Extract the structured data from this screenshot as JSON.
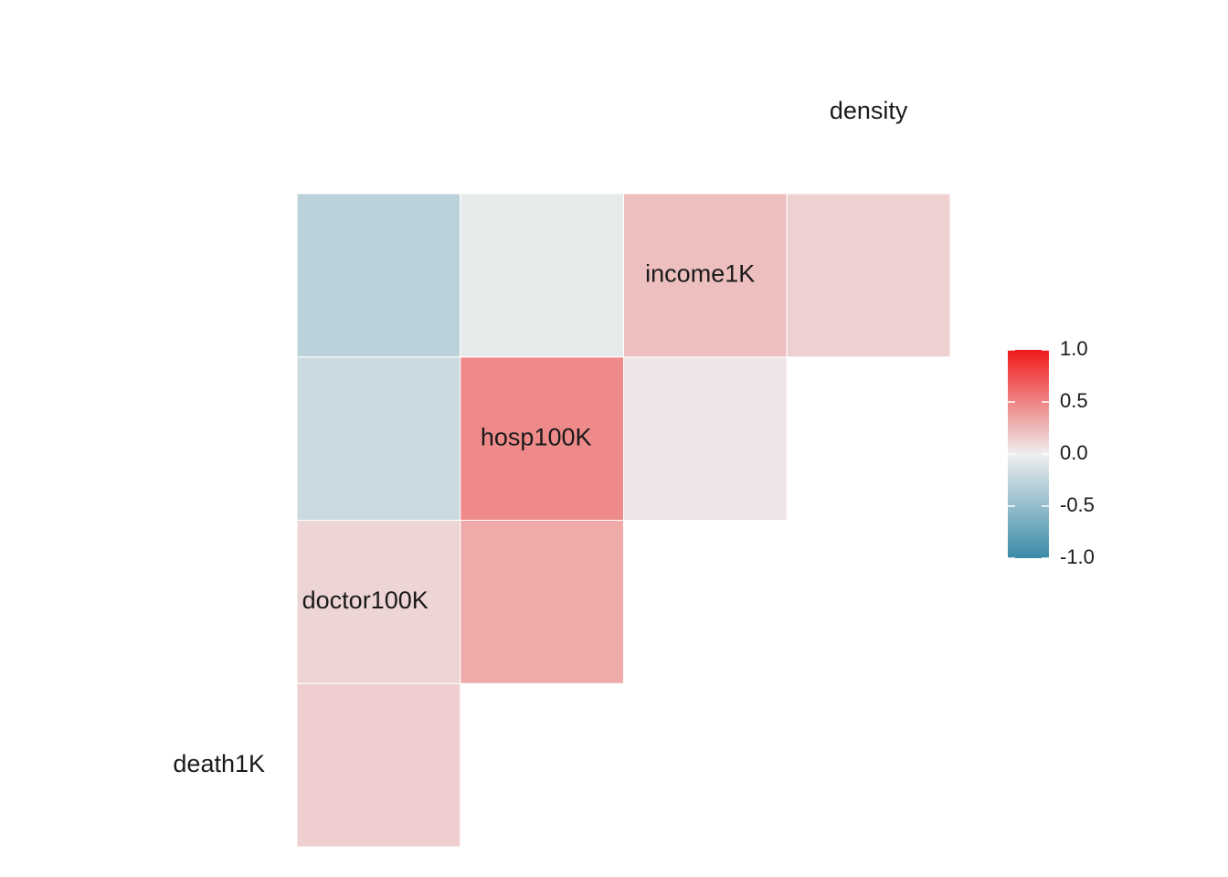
{
  "chart_data": {
    "type": "heatmap",
    "variables": [
      "death1K",
      "doctor100K",
      "hosp100K",
      "income1K",
      "density"
    ],
    "cells": [
      {
        "row": "doctor100K",
        "col": "death1K",
        "value": 0.15
      },
      {
        "row": "hosp100K",
        "col": "death1K",
        "value": 0.12
      },
      {
        "row": "hosp100K",
        "col": "doctor100K",
        "value": 0.32
      },
      {
        "row": "income1K",
        "col": "death1K",
        "value": -0.2
      },
      {
        "row": "income1K",
        "col": "doctor100K",
        "value": 0.47
      },
      {
        "row": "income1K",
        "col": "hosp100K",
        "value": 0.04
      },
      {
        "row": "density",
        "col": "death1K",
        "value": -0.28
      },
      {
        "row": "density",
        "col": "doctor100K",
        "value": -0.04
      },
      {
        "row": "density",
        "col": "hosp100K",
        "value": 0.22
      },
      {
        "row": "density",
        "col": "income1K",
        "value": 0.14
      }
    ],
    "color_scale": {
      "low": "#3a8ba8",
      "mid": "#eeeeee",
      "high": "#f01a1a",
      "range": [
        -1.0,
        1.0
      ]
    },
    "legend": {
      "placement": "right",
      "ticks": [
        "1.0",
        "0.5",
        "0.0",
        "-0.5",
        "-1.0"
      ]
    }
  }
}
